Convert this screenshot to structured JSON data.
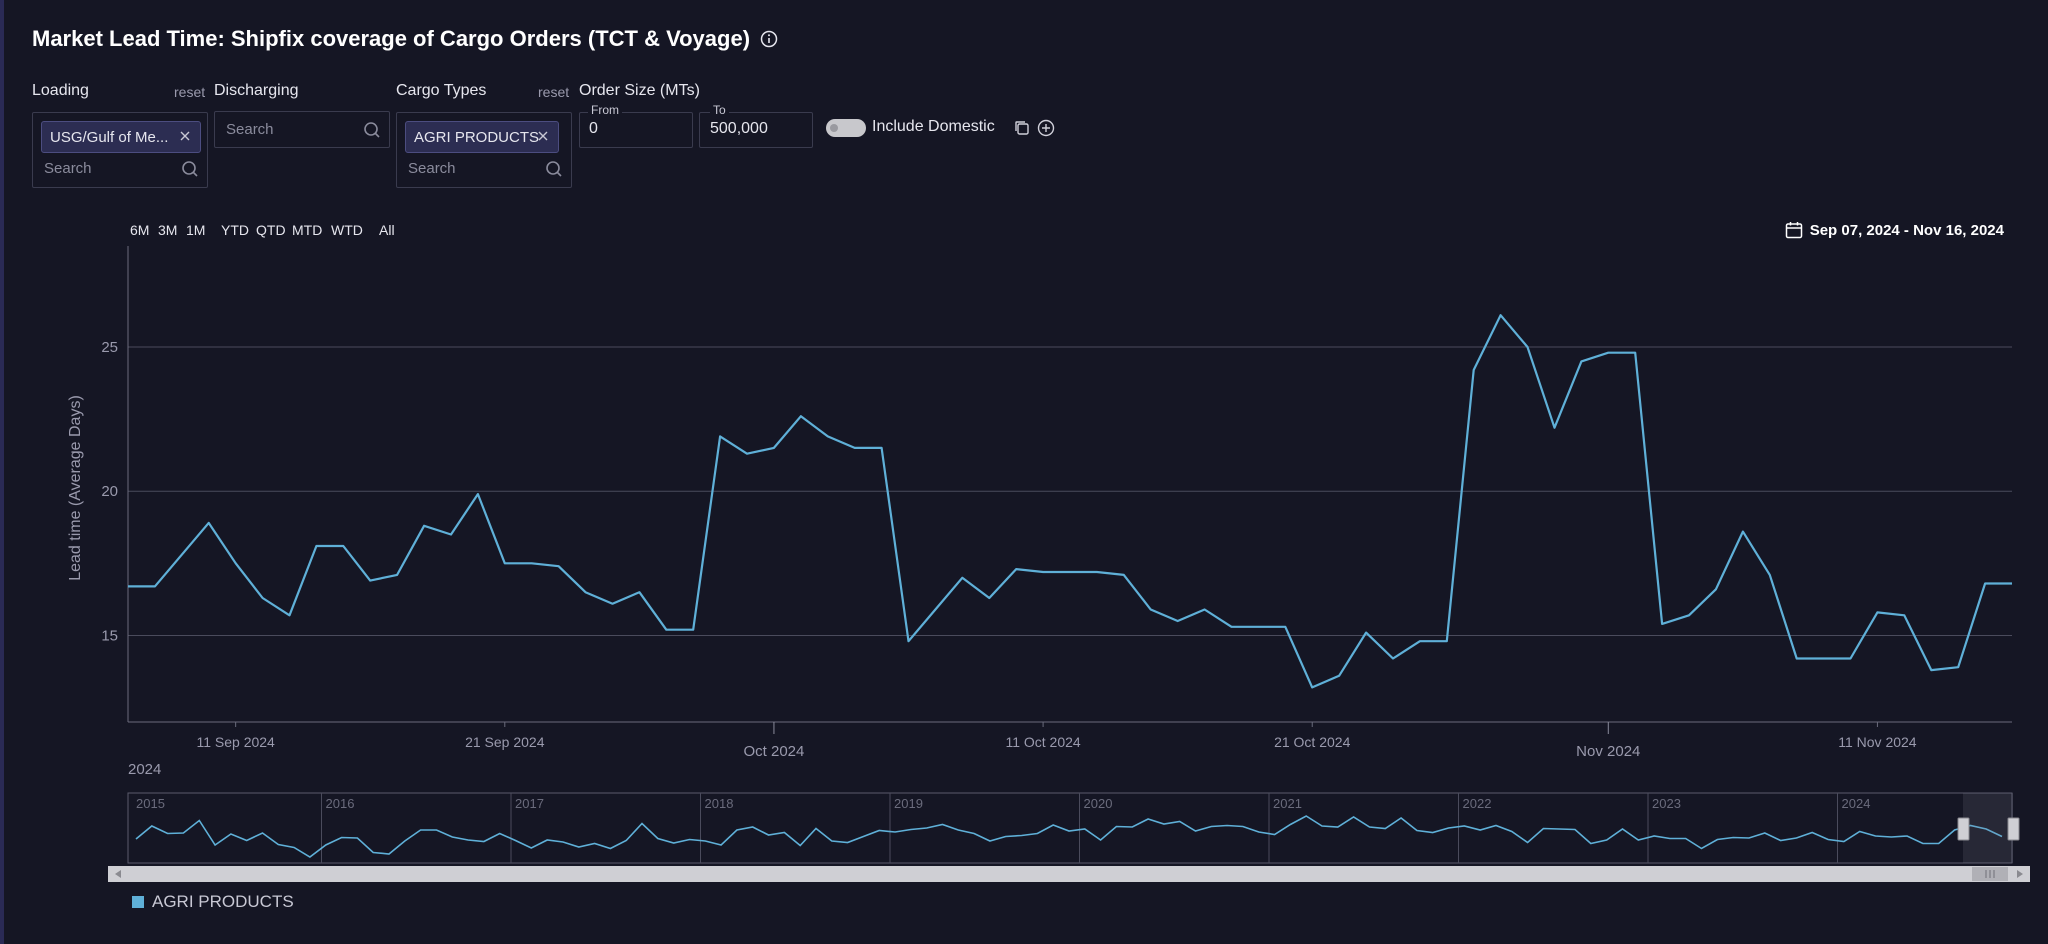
{
  "header": {
    "title": "Market Lead Time: Shipfix coverage of Cargo Orders (TCT & Voyage)"
  },
  "filters": {
    "loading": {
      "label": "Loading",
      "reset": "reset",
      "chip": "USG/Gulf of Me...",
      "search_placeholder": "Search"
    },
    "discharging": {
      "label": "Discharging",
      "search_placeholder": "Search"
    },
    "cargo_types": {
      "label": "Cargo Types",
      "reset": "reset",
      "chip": "AGRI PRODUCTS",
      "search_placeholder": "Search"
    },
    "order_size": {
      "label": "Order Size (MTs)",
      "from_label": "From",
      "from_value": "0",
      "to_label": "To",
      "to_value": "500,000"
    },
    "include_domestic": {
      "label": "Include Domestic",
      "on": false
    }
  },
  "range_buttons": [
    "6M",
    "3M",
    "1M",
    "YTD",
    "QTD",
    "MTD",
    "WTD",
    "All"
  ],
  "date_range": "Sep 07, 2024 - Nov 16, 2024",
  "colors": {
    "series": "#5fb0d8",
    "background": "#151624"
  },
  "chart_data": {
    "type": "line",
    "ylabel": "Lead time (Average Days)",
    "ylim": [
      12,
      28.5
    ],
    "yticks": [
      15,
      20,
      25
    ],
    "xlim": [
      "2024-09-07",
      "2024-11-16"
    ],
    "xticks_minor": [
      {
        "date": "2024-09-11",
        "label": "11 Sep 2024"
      },
      {
        "date": "2024-09-21",
        "label": "21 Sep 2024"
      },
      {
        "date": "2024-10-11",
        "label": "11 Oct 2024"
      },
      {
        "date": "2024-10-21",
        "label": "21 Oct 2024"
      },
      {
        "date": "2024-11-11",
        "label": "11 Nov 2024"
      }
    ],
    "xticks_major": [
      {
        "date": "2024-10-01",
        "label": "Oct 2024"
      },
      {
        "date": "2024-11-01",
        "label": "Nov 2024"
      }
    ],
    "year_label": "2024",
    "grid": true,
    "legend_position": "bottom-left",
    "series": [
      {
        "name": "AGRI PRODUCTS",
        "x": [
          "2024-09-07",
          "2024-09-08",
          "2024-09-09",
          "2024-09-10",
          "2024-09-11",
          "2024-09-12",
          "2024-09-13",
          "2024-09-14",
          "2024-09-15",
          "2024-09-16",
          "2024-09-17",
          "2024-09-18",
          "2024-09-19",
          "2024-09-20",
          "2024-09-21",
          "2024-09-22",
          "2024-09-23",
          "2024-09-24",
          "2024-09-25",
          "2024-09-26",
          "2024-09-27",
          "2024-09-28",
          "2024-09-29",
          "2024-09-30",
          "2024-10-01",
          "2024-10-02",
          "2024-10-03",
          "2024-10-04",
          "2024-10-05",
          "2024-10-06",
          "2024-10-07",
          "2024-10-08",
          "2024-10-09",
          "2024-10-10",
          "2024-10-11",
          "2024-10-12",
          "2024-10-13",
          "2024-10-14",
          "2024-10-15",
          "2024-10-16",
          "2024-10-17",
          "2024-10-18",
          "2024-10-19",
          "2024-10-20",
          "2024-10-21",
          "2024-10-22",
          "2024-10-23",
          "2024-10-24",
          "2024-10-25",
          "2024-10-26",
          "2024-10-27",
          "2024-10-28",
          "2024-10-29",
          "2024-10-30",
          "2024-10-31",
          "2024-11-01",
          "2024-11-02",
          "2024-11-03",
          "2024-11-04",
          "2024-11-05",
          "2024-11-06",
          "2024-11-07",
          "2024-11-08",
          "2024-11-09",
          "2024-11-10",
          "2024-11-11",
          "2024-11-12",
          "2024-11-13",
          "2024-11-14",
          "2024-11-15",
          "2024-11-16"
        ],
        "values": [
          16.7,
          16.7,
          17.8,
          18.9,
          17.5,
          16.3,
          15.7,
          18.1,
          18.1,
          16.9,
          17.1,
          18.8,
          18.5,
          19.9,
          17.5,
          17.5,
          17.4,
          16.5,
          16.1,
          16.5,
          15.2,
          15.2,
          21.9,
          21.3,
          21.5,
          22.6,
          21.9,
          21.5,
          21.5,
          14.8,
          15.9,
          17.0,
          16.3,
          17.3,
          17.2,
          17.2,
          17.2,
          17.1,
          15.9,
          15.5,
          15.9,
          15.3,
          15.3,
          15.3,
          13.2,
          13.6,
          15.1,
          14.2,
          14.8,
          14.8,
          24.2,
          26.1,
          25.0,
          22.2,
          24.5,
          24.8,
          24.8,
          15.4,
          15.7,
          16.6,
          18.6,
          17.1,
          14.2,
          14.2,
          14.2,
          15.8,
          15.7,
          13.8,
          13.9,
          16.8,
          16.8
        ]
      }
    ]
  },
  "navigator": {
    "years": [
      "2015",
      "2016",
      "2017",
      "2018",
      "2019",
      "2020",
      "2021",
      "2022",
      "2023",
      "2024"
    ],
    "values": [
      3.8,
      6.4,
      4.9,
      5.0,
      7.5,
      2.6,
      4.8,
      3.5,
      5.0,
      2.7,
      2.1,
      0.2,
      2.6,
      4.1,
      4.0,
      1.1,
      0.8,
      3.4,
      5.6,
      5.6,
      4.2,
      3.6,
      3.3,
      4.9,
      3.5,
      2.0,
      3.6,
      3.2,
      2.2,
      2.9,
      1.9,
      3.5,
      6.9,
      3.9,
      3.0,
      3.7,
      3.4,
      2.6,
      5.6,
      6.2,
      4.6,
      5.1,
      2.5,
      5.9,
      3.4,
      3.1,
      4.3,
      5.5,
      5.2,
      5.7,
      6.0,
      6.7,
      5.6,
      4.9,
      3.4,
      4.3,
      4.5,
      4.9,
      6.6,
      5.4,
      5.8,
      3.6,
      6.3,
      6.2,
      7.8,
      6.8,
      7.3,
      5.4,
      6.3,
      6.5,
      6.3,
      5.2,
      4.7,
      6.7,
      8.4,
      6.4,
      6.2,
      8.2,
      6.2,
      5.9,
      8.0,
      5.5,
      5.1,
      6.0,
      6.4,
      5.6,
      6.5,
      5.3,
      3.1,
      5.9,
      5.8,
      5.7,
      2.9,
      3.6,
      5.8,
      3.6,
      4.4,
      3.9,
      3.9,
      1.9,
      3.7,
      4.1,
      4.0,
      5.0,
      3.5,
      4.0,
      5.1,
      3.7,
      3.3,
      5.3,
      4.4,
      4.2,
      4.4,
      2.9,
      2.9,
      5.6,
      6.5,
      5.8,
      4.3
    ]
  }
}
